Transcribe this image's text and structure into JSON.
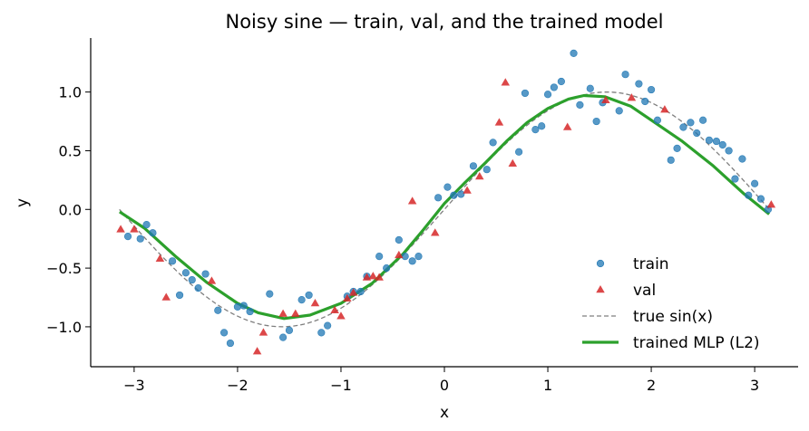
{
  "chart_data": {
    "type": "scatter",
    "title": "Noisy sine — train, val, and the trained model",
    "xlabel": "x",
    "ylabel": "y",
    "xlim": [
      -3.42,
      3.42
    ],
    "ylim": [
      -1.34,
      1.46
    ],
    "xticks": [
      -3,
      -2,
      -1,
      0,
      1,
      2,
      3
    ],
    "xtick_labels": [
      "−3",
      "−2",
      "−1",
      "0",
      "1",
      "2",
      "3"
    ],
    "yticks": [
      -1.0,
      -0.5,
      0.0,
      0.5,
      1.0
    ],
    "ytick_labels": [
      "−1.0",
      "−0.5",
      "0.0",
      "0.5",
      "1.0"
    ],
    "grid": false,
    "legend_position": "lower right",
    "series": [
      {
        "name": "train",
        "kind": "scatter",
        "marker": "circle",
        "color": "#1f77b4",
        "points": [
          [
            -3.06,
            -0.23
          ],
          [
            -2.94,
            -0.25
          ],
          [
            -2.88,
            -0.13
          ],
          [
            -2.82,
            -0.2
          ],
          [
            -2.63,
            -0.44
          ],
          [
            -2.56,
            -0.73
          ],
          [
            -2.5,
            -0.54
          ],
          [
            -2.44,
            -0.6
          ],
          [
            -2.38,
            -0.67
          ],
          [
            -2.31,
            -0.55
          ],
          [
            -2.19,
            -0.86
          ],
          [
            -2.13,
            -1.05
          ],
          [
            -2.07,
            -1.14
          ],
          [
            -2.0,
            -0.83
          ],
          [
            -1.94,
            -0.82
          ],
          [
            -1.88,
            -0.87
          ],
          [
            -1.69,
            -0.72
          ],
          [
            -1.56,
            -1.09
          ],
          [
            -1.5,
            -1.03
          ],
          [
            -1.38,
            -0.77
          ],
          [
            -1.31,
            -0.73
          ],
          [
            -1.19,
            -1.05
          ],
          [
            -1.13,
            -0.99
          ],
          [
            -0.94,
            -0.74
          ],
          [
            -0.88,
            -0.7
          ],
          [
            -0.81,
            -0.7
          ],
          [
            -0.75,
            -0.57
          ],
          [
            -0.63,
            -0.4
          ],
          [
            -0.56,
            -0.5
          ],
          [
            -0.44,
            -0.26
          ],
          [
            -0.38,
            -0.4
          ],
          [
            -0.31,
            -0.44
          ],
          [
            -0.25,
            -0.4
          ],
          [
            -0.06,
            0.1
          ],
          [
            0.03,
            0.19
          ],
          [
            0.09,
            0.12
          ],
          [
            0.16,
            0.13
          ],
          [
            0.28,
            0.37
          ],
          [
            0.41,
            0.34
          ],
          [
            0.47,
            0.57
          ],
          [
            0.72,
            0.49
          ],
          [
            0.78,
            0.99
          ],
          [
            0.88,
            0.68
          ],
          [
            0.94,
            0.71
          ],
          [
            1.0,
            0.98
          ],
          [
            1.06,
            1.04
          ],
          [
            1.13,
            1.09
          ],
          [
            1.25,
            1.33
          ],
          [
            1.31,
            0.89
          ],
          [
            1.41,
            1.03
          ],
          [
            1.47,
            0.75
          ],
          [
            1.53,
            0.91
          ],
          [
            1.69,
            0.84
          ],
          [
            1.75,
            1.15
          ],
          [
            1.88,
            1.07
          ],
          [
            1.94,
            0.92
          ],
          [
            2.0,
            1.02
          ],
          [
            2.06,
            0.76
          ],
          [
            2.19,
            0.42
          ],
          [
            2.25,
            0.52
          ],
          [
            2.31,
            0.7
          ],
          [
            2.38,
            0.74
          ],
          [
            2.44,
            0.65
          ],
          [
            2.5,
            0.76
          ],
          [
            2.56,
            0.59
          ],
          [
            2.63,
            0.58
          ],
          [
            2.69,
            0.55
          ],
          [
            2.75,
            0.5
          ],
          [
            2.81,
            0.26
          ],
          [
            2.88,
            0.43
          ],
          [
            2.94,
            0.12
          ],
          [
            3.0,
            0.22
          ],
          [
            3.06,
            0.09
          ],
          [
            3.13,
            0.0
          ]
        ]
      },
      {
        "name": "val",
        "kind": "scatter",
        "marker": "triangle",
        "color": "#d62728",
        "points": [
          [
            -3.13,
            -0.17
          ],
          [
            -3.0,
            -0.17
          ],
          [
            -2.75,
            -0.42
          ],
          [
            -2.69,
            -0.75
          ],
          [
            -2.25,
            -0.61
          ],
          [
            -1.81,
            -1.21
          ],
          [
            -1.75,
            -1.05
          ],
          [
            -1.56,
            -0.89
          ],
          [
            -1.44,
            -0.89
          ],
          [
            -1.25,
            -0.8
          ],
          [
            -1.06,
            -0.86
          ],
          [
            -1.0,
            -0.91
          ],
          [
            -0.94,
            -0.76
          ],
          [
            -0.88,
            -0.71
          ],
          [
            -0.75,
            -0.58
          ],
          [
            -0.69,
            -0.57
          ],
          [
            -0.63,
            -0.58
          ],
          [
            -0.44,
            -0.39
          ],
          [
            -0.31,
            0.07
          ],
          [
            -0.09,
            -0.2
          ],
          [
            0.22,
            0.16
          ],
          [
            0.34,
            0.28
          ],
          [
            0.53,
            0.74
          ],
          [
            0.59,
            1.08
          ],
          [
            0.66,
            0.39
          ],
          [
            1.19,
            0.7
          ],
          [
            1.56,
            0.93
          ],
          [
            1.81,
            0.95
          ],
          [
            2.13,
            0.85
          ],
          [
            3.16,
            0.04
          ]
        ]
      },
      {
        "name": "true sin(x)",
        "kind": "line",
        "style": "dashed",
        "color": "#7f7f7f",
        "function": "sin(x)",
        "domain": [
          -3.1416,
          3.1416
        ]
      },
      {
        "name": "trained MLP (L2)",
        "kind": "line",
        "style": "solid",
        "color": "#2ca02c",
        "points": [
          [
            -3.14,
            -0.02
          ],
          [
            -2.9,
            -0.16
          ],
          [
            -2.6,
            -0.4
          ],
          [
            -2.3,
            -0.62
          ],
          [
            -2.0,
            -0.8
          ],
          [
            -1.8,
            -0.88
          ],
          [
            -1.55,
            -0.93
          ],
          [
            -1.3,
            -0.9
          ],
          [
            -1.0,
            -0.8
          ],
          [
            -0.7,
            -0.63
          ],
          [
            -0.4,
            -0.38
          ],
          [
            -0.2,
            -0.17
          ],
          [
            0.0,
            0.05
          ],
          [
            0.2,
            0.23
          ],
          [
            0.4,
            0.4
          ],
          [
            0.6,
            0.58
          ],
          [
            0.8,
            0.74
          ],
          [
            1.0,
            0.86
          ],
          [
            1.2,
            0.94
          ],
          [
            1.35,
            0.97
          ],
          [
            1.55,
            0.96
          ],
          [
            1.8,
            0.88
          ],
          [
            2.0,
            0.76
          ],
          [
            2.3,
            0.58
          ],
          [
            2.6,
            0.37
          ],
          [
            2.9,
            0.13
          ],
          [
            3.14,
            -0.04
          ]
        ]
      }
    ]
  }
}
